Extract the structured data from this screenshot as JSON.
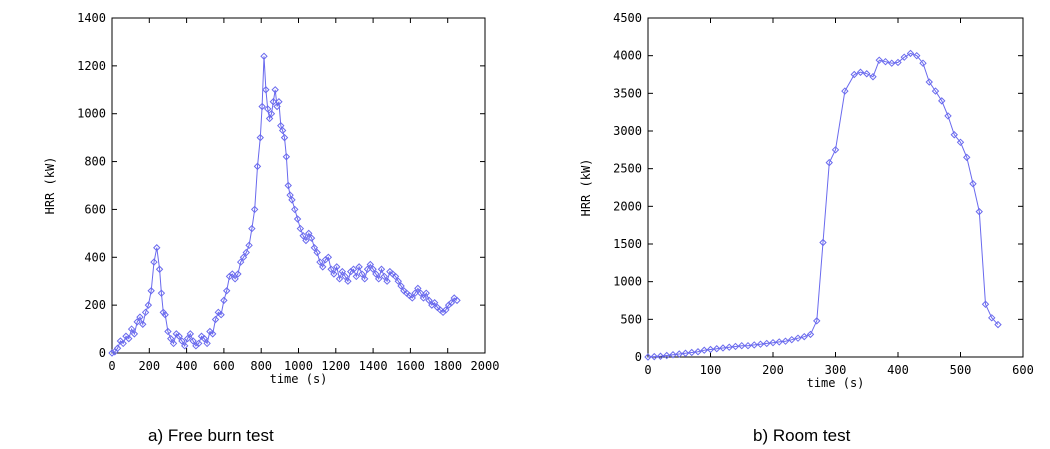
{
  "chart_data": [
    {
      "type": "line",
      "caption": "a) Free burn test",
      "xlabel": "time (s)",
      "ylabel": "HRR (kW)",
      "xlim": [
        0,
        2000
      ],
      "ylim": [
        0,
        1400
      ],
      "xticks": [
        0,
        200,
        400,
        600,
        800,
        1000,
        1200,
        1400,
        1600,
        1800,
        2000
      ],
      "yticks": [
        0,
        200,
        400,
        600,
        800,
        1000,
        1200,
        1400
      ],
      "grid": false,
      "line_color": "#6a6aee",
      "marker": "diamond",
      "series": [
        {
          "x": [
            0,
            15,
            30,
            45,
            60,
            75,
            90,
            105,
            120,
            135,
            150,
            165,
            180,
            195,
            210,
            225,
            240,
            255,
            265,
            275,
            285,
            300,
            315,
            330,
            345,
            360,
            375,
            390,
            405,
            420,
            435,
            450,
            465,
            480,
            495,
            510,
            525,
            540,
            555,
            570,
            585,
            600,
            615,
            630,
            645,
            660,
            675,
            690,
            705,
            720,
            735,
            750,
            765,
            780,
            795,
            805,
            815,
            825,
            835,
            845,
            855,
            865,
            875,
            885,
            895,
            905,
            915,
            925,
            935,
            945,
            955,
            965,
            980,
            995,
            1010,
            1025,
            1040,
            1055,
            1070,
            1085,
            1100,
            1115,
            1130,
            1145,
            1160,
            1175,
            1190,
            1205,
            1220,
            1235,
            1250,
            1265,
            1280,
            1295,
            1310,
            1325,
            1340,
            1355,
            1370,
            1385,
            1400,
            1415,
            1430,
            1445,
            1460,
            1475,
            1490,
            1505,
            1520,
            1535,
            1550,
            1565,
            1580,
            1595,
            1610,
            1625,
            1640,
            1655,
            1670,
            1685,
            1700,
            1715,
            1730,
            1745,
            1760,
            1775,
            1790,
            1805,
            1820,
            1835,
            1850
          ],
          "y": [
            0,
            5,
            20,
            50,
            40,
            70,
            60,
            100,
            80,
            130,
            150,
            120,
            170,
            200,
            260,
            380,
            440,
            350,
            250,
            170,
            160,
            90,
            60,
            40,
            80,
            70,
            50,
            30,
            60,
            80,
            50,
            30,
            40,
            70,
            60,
            40,
            90,
            80,
            140,
            170,
            160,
            220,
            260,
            320,
            330,
            310,
            330,
            380,
            400,
            420,
            450,
            520,
            600,
            780,
            900,
            1030,
            1240,
            1100,
            1020,
            980,
            1000,
            1050,
            1100,
            1030,
            1050,
            950,
            930,
            900,
            820,
            700,
            660,
            640,
            600,
            560,
            520,
            490,
            470,
            500,
            480,
            440,
            420,
            380,
            360,
            390,
            400,
            350,
            330,
            360,
            310,
            340,
            320,
            300,
            340,
            350,
            320,
            360,
            330,
            310,
            350,
            370,
            350,
            330,
            310,
            350,
            320,
            300,
            340,
            330,
            320,
            300,
            280,
            260,
            250,
            240,
            230,
            250,
            270,
            250,
            230,
            250,
            220,
            200,
            210,
            190,
            180,
            170,
            180,
            200,
            210,
            230,
            220
          ]
        }
      ]
    },
    {
      "type": "line",
      "caption": "b) Room test",
      "xlabel": "time (s)",
      "ylabel": "HRR (kW)",
      "xlim": [
        0,
        600
      ],
      "ylim": [
        0,
        4500
      ],
      "xticks": [
        0,
        100,
        200,
        300,
        400,
        500,
        600
      ],
      "yticks": [
        0,
        500,
        1000,
        1500,
        2000,
        2500,
        3000,
        3500,
        4000,
        4500
      ],
      "grid": false,
      "line_color": "#6a6aee",
      "marker": "diamond",
      "series": [
        {
          "x": [
            0,
            10,
            20,
            30,
            40,
            50,
            60,
            70,
            80,
            90,
            100,
            110,
            120,
            130,
            140,
            150,
            160,
            170,
            180,
            190,
            200,
            210,
            220,
            230,
            240,
            250,
            260,
            270,
            280,
            290,
            300,
            315,
            330,
            340,
            350,
            360,
            370,
            380,
            390,
            400,
            410,
            420,
            430,
            440,
            450,
            460,
            470,
            480,
            490,
            500,
            510,
            520,
            530,
            540,
            550,
            560
          ],
          "y": [
            0,
            5,
            10,
            20,
            30,
            40,
            50,
            60,
            70,
            90,
            100,
            110,
            120,
            130,
            140,
            150,
            150,
            160,
            170,
            180,
            190,
            200,
            210,
            230,
            250,
            270,
            300,
            480,
            1520,
            2580,
            2750,
            3530,
            3750,
            3780,
            3760,
            3720,
            3940,
            3920,
            3900,
            3910,
            3980,
            4030,
            4000,
            3900,
            3650,
            3530,
            3400,
            3200,
            2950,
            2850,
            2650,
            2300,
            1930,
            700,
            520,
            430
          ]
        }
      ]
    }
  ]
}
